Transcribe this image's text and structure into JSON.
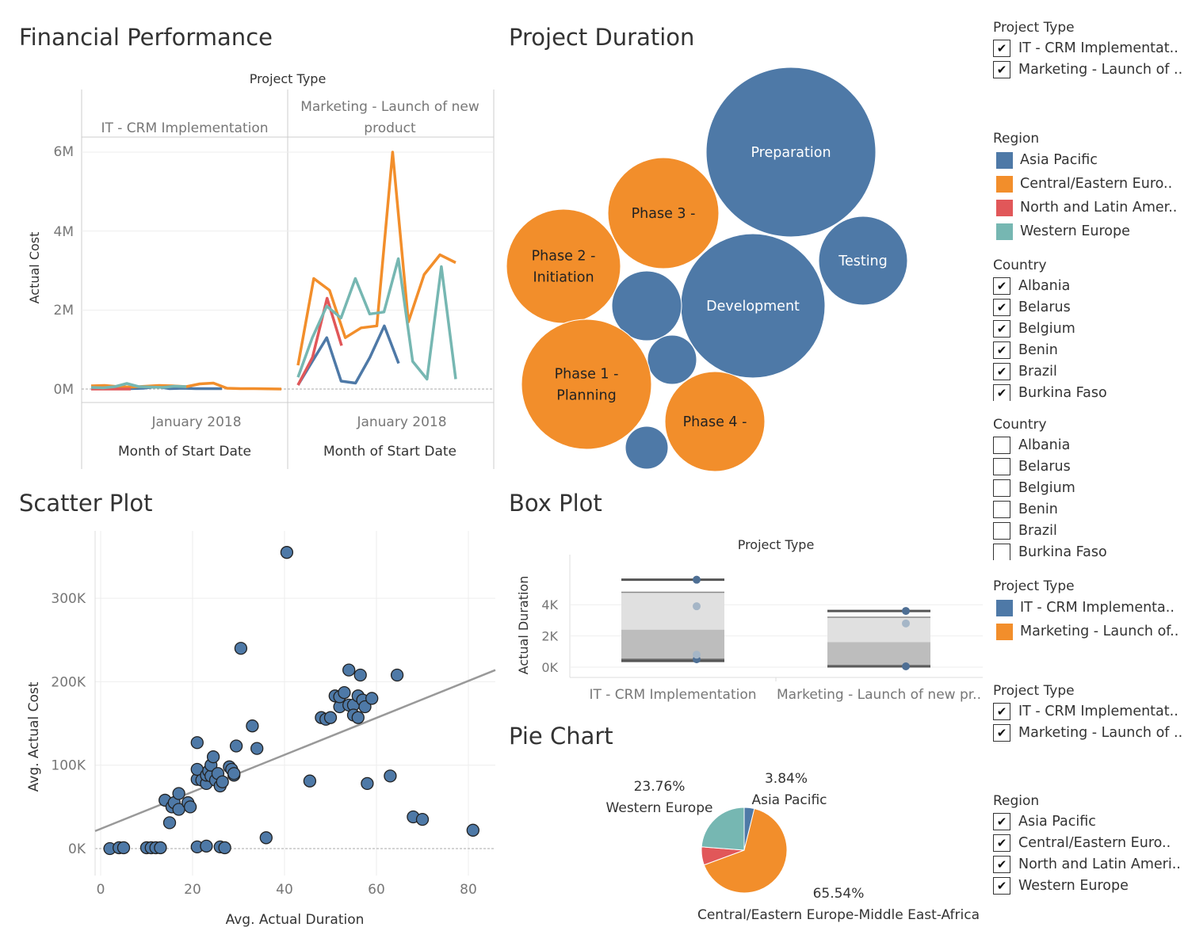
{
  "colors": {
    "blue": "#4e79a7",
    "orange": "#f28e2b",
    "red": "#e15759",
    "teal": "#76b7b2",
    "gray_line": "#999999"
  },
  "financial": {
    "title": "Financial Performance",
    "header": "Project Type",
    "panes": [
      "IT -  CRM Implementation",
      "Marketing - Launch of new product"
    ],
    "x_tick": "January 2018",
    "x_label": "Month of Start Date",
    "y_label": "Actual Cost",
    "y_ticks": [
      "6M",
      "4M",
      "2M",
      "0M"
    ]
  },
  "duration": {
    "title": "Project Duration"
  },
  "scatter": {
    "title": "Scatter Plot",
    "x_label": "Avg. Actual Duration",
    "y_label": "Avg. Actual Cost",
    "x_ticks": [
      "0",
      "20",
      "40",
      "60",
      "80"
    ],
    "y_ticks": [
      "300K",
      "200K",
      "100K",
      "0K"
    ]
  },
  "box": {
    "title": "Box Plot",
    "header": "Project Type",
    "y_label": "Actual Duration",
    "y_ticks": [
      "4K",
      "2K",
      "0K"
    ],
    "categories": [
      "IT -  CRM Implementation",
      "Marketing - Launch of new pr.."
    ]
  },
  "pie": {
    "title": "Pie Chart",
    "labels": [
      {
        "pct": "3.84%",
        "name": "Asia Pacific"
      },
      {
        "pct": "23.76%",
        "name": "Western Europe"
      },
      {
        "pct": "65.54%",
        "name": "Central/Eastern Europe-Middle East-Africa"
      }
    ]
  },
  "legends": {
    "project_type_filter": {
      "title": "Project Type",
      "items": [
        "IT -  CRM Implementat..",
        "Marketing - Launch of .."
      ]
    },
    "region_color": {
      "title": "Region",
      "items": [
        "Asia Pacific",
        "Central/Eastern Euro..",
        "North and Latin Amer..",
        "Western Europe"
      ]
    },
    "country_filter_1": {
      "title": "Country",
      "items": [
        "Albania",
        "Belarus",
        "Belgium",
        "Benin",
        "Brazil",
        "Burkina Faso"
      ]
    },
    "country_filter_2": {
      "title": "Country",
      "items": [
        "Albania",
        "Belarus",
        "Belgium",
        "Benin",
        "Brazil",
        "Burkina Faso"
      ]
    },
    "project_type_color": {
      "title": "Project Type",
      "items": [
        "IT -  CRM Implementa..",
        "Marketing - Launch of.."
      ]
    },
    "project_type_filter_2": {
      "title": "Project Type",
      "items": [
        "IT -  CRM Implementat..",
        "Marketing - Launch of .."
      ]
    },
    "region_filter": {
      "title": "Region",
      "items": [
        "Asia Pacific",
        "Central/Eastern Euro..",
        "North and Latin Ameri..",
        "Western Europe"
      ]
    }
  },
  "chart_data": [
    {
      "type": "line",
      "title": "Financial Performance",
      "xlabel": "Month of Start Date",
      "ylabel": "Actual Cost",
      "ylim": [
        0,
        7000000
      ],
      "panes": [
        {
          "name": "IT -  CRM Implementation",
          "series": [
            {
              "name": "Asia Pacific",
              "values": [
                30000,
                20000,
                30000,
                10000,
                20000,
                60000,
                10000,
                20000,
                10000,
                10000,
                10000
              ]
            },
            {
              "name": "Central/Eastern Europe-Middle East-Africa",
              "values": [
                80000,
                90000,
                60000,
                50000,
                70000,
                90000,
                80000,
                60000,
                130000,
                150000,
                20000,
                10000,
                10000,
                5000,
                0
              ]
            },
            {
              "name": "North and Latin America",
              "values": [
                0,
                0,
                0,
                0,
                0,
                0,
                0
              ]
            },
            {
              "name": "Western Europe",
              "values": [
                40000,
                30000,
                60000,
                140000,
                60000,
                50000,
                40000,
                70000,
                60000
              ]
            }
          ]
        },
        {
          "name": "Marketing - Launch of new product",
          "series": [
            {
              "name": "Asia Pacific",
              "values": [
                100000,
                700000,
                1300000,
                200000,
                150000,
                800000,
                1600000,
                650000
              ]
            },
            {
              "name": "Central/Eastern Europe-Middle East-Africa",
              "values": [
                600000,
                2800000,
                2500000,
                1300000,
                1550000,
                1600000,
                6000000,
                1700000,
                2900000,
                3400000,
                3200000
              ]
            },
            {
              "name": "North and Latin America",
              "values": [
                100000,
                800000,
                2300000,
                1100000
              ]
            },
            {
              "name": "Western Europe",
              "values": [
                300000,
                1300000,
                2100000,
                1800000,
                2800000,
                1900000,
                1950000,
                3300000,
                700000,
                250000,
                3100000,
                250000
              ]
            }
          ]
        }
      ]
    },
    {
      "type": "bubble",
      "title": "Project Duration",
      "bubbles": [
        {
          "label": "Preparation",
          "group": "IT -  CRM Implementation",
          "size": 100
        },
        {
          "label": "Development",
          "group": "IT -  CRM Implementation",
          "size": 71
        },
        {
          "label": "Testing",
          "group": "IT -  CRM Implementation",
          "size": 27
        },
        {
          "label": "",
          "group": "IT -  CRM Implementation",
          "size": 16
        },
        {
          "label": "",
          "group": "IT -  CRM Implementation",
          "size": 8
        },
        {
          "label": "",
          "group": "IT -  CRM Implementation",
          "size": 6
        },
        {
          "label": "Phase 3 -",
          "group": "Marketing - Launch of new product",
          "size": 41
        },
        {
          "label": "Phase 2 - Initiation",
          "group": "Marketing - Launch of new product",
          "size": 44
        },
        {
          "label": "Phase 1 - Planning",
          "group": "Marketing - Launch of new product",
          "size": 59
        },
        {
          "label": "Phase 4 -",
          "group": "Marketing - Launch of new product",
          "size": 34
        }
      ]
    },
    {
      "type": "scatter",
      "title": "Scatter Plot",
      "xlabel": "Avg. Actual Duration",
      "ylabel": "Avg. Actual Cost",
      "xlim": [
        0,
        86
      ],
      "ylim": [
        -5000,
        360000
      ],
      "trend": {
        "x": [
          0,
          86
        ],
        "y": [
          21000,
          214000
        ]
      },
      "points": [
        [
          2,
          0
        ],
        [
          4,
          1000
        ],
        [
          5,
          1000
        ],
        [
          10,
          1000
        ],
        [
          11,
          1000
        ],
        [
          12,
          1000
        ],
        [
          13,
          1000
        ],
        [
          21,
          2000
        ],
        [
          23,
          3000
        ],
        [
          26,
          2000
        ],
        [
          27,
          1000
        ],
        [
          36,
          13000
        ],
        [
          14,
          58000
        ],
        [
          15,
          31000
        ],
        [
          15.5,
          50000
        ],
        [
          16,
          55000
        ],
        [
          17,
          47000
        ],
        [
          17,
          66000
        ],
        [
          19,
          55000
        ],
        [
          19.5,
          50000
        ],
        [
          21,
          83000
        ],
        [
          21,
          95000
        ],
        [
          21,
          127000
        ],
        [
          22,
          82000
        ],
        [
          23,
          78000
        ],
        [
          23,
          88000
        ],
        [
          23.5,
          93000
        ],
        [
          24,
          87000
        ],
        [
          24,
          100000
        ],
        [
          24.5,
          110000
        ],
        [
          25,
          82000
        ],
        [
          25.5,
          90000
        ],
        [
          26,
          75000
        ],
        [
          26.5,
          80000
        ],
        [
          28,
          98000
        ],
        [
          28.5,
          95000
        ],
        [
          29,
          88000
        ],
        [
          29,
          90000
        ],
        [
          29.5,
          123000
        ],
        [
          30.5,
          240000
        ],
        [
          33,
          147000
        ],
        [
          34,
          120000
        ],
        [
          40.5,
          355000
        ],
        [
          45.5,
          81000
        ],
        [
          48,
          157000
        ],
        [
          49,
          155000
        ],
        [
          50,
          157000
        ],
        [
          51,
          183000
        ],
        [
          52,
          170000
        ],
        [
          52,
          182000
        ],
        [
          53,
          187000
        ],
        [
          54,
          214000
        ],
        [
          54,
          172000
        ],
        [
          55,
          172000
        ],
        [
          55,
          160000
        ],
        [
          56,
          157000
        ],
        [
          56,
          183000
        ],
        [
          56.5,
          208000
        ],
        [
          57,
          178000
        ],
        [
          57.5,
          170000
        ],
        [
          58,
          78000
        ],
        [
          59,
          180000
        ],
        [
          63,
          87000
        ],
        [
          64.5,
          208000
        ],
        [
          68,
          38000
        ],
        [
          70,
          35000
        ],
        [
          81,
          22000
        ]
      ]
    },
    {
      "type": "box",
      "title": "Box Plot",
      "ylabel": "Actual Duration",
      "ylim": [
        -200,
        6200
      ],
      "categories": [
        "IT -  CRM Implementation",
        "Marketing - Launch of new product"
      ],
      "boxes": [
        {
          "whisker_low": 400,
          "q1": 500,
          "median": 2400,
          "q3": 4800,
          "whisker_high": 5600,
          "points": [
            500,
            800,
            3900,
            5600
          ]
        },
        {
          "whisker_low": 50,
          "q1": 100,
          "median": 1600,
          "q3": 3200,
          "whisker_high": 3600,
          "points": [
            50,
            2800,
            3600
          ]
        }
      ]
    },
    {
      "type": "pie",
      "title": "Pie Chart",
      "slices": [
        {
          "name": "Asia Pacific",
          "value": 3.84
        },
        {
          "name": "Central/Eastern Europe-Middle East-Africa",
          "value": 65.54
        },
        {
          "name": "North and Latin America",
          "value": 6.86
        },
        {
          "name": "Western Europe",
          "value": 23.76
        }
      ]
    }
  ]
}
